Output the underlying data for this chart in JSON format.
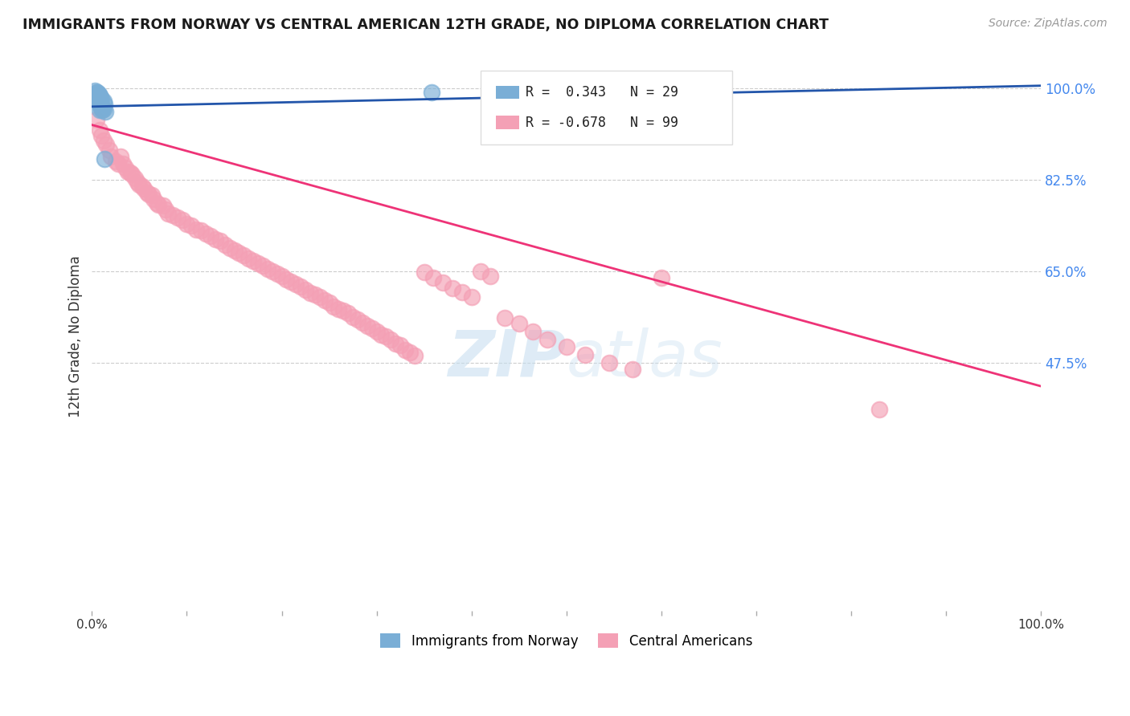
{
  "title": "IMMIGRANTS FROM NORWAY VS CENTRAL AMERICAN 12TH GRADE, NO DIPLOMA CORRELATION CHART",
  "source": "Source: ZipAtlas.com",
  "ylabel": "12th Grade, No Diploma",
  "norway_label": "Immigrants from Norway",
  "central_label": "Central Americans",
  "norway_R": 0.343,
  "norway_N": 29,
  "central_R": -0.678,
  "central_N": 99,
  "norway_color": "#7aaed6",
  "central_color": "#f4a0b5",
  "norway_line_color": "#2255aa",
  "central_line_color": "#ee3377",
  "watermark_color": "#c8dff0",
  "right_ytick_color": "#4488ee",
  "norway_x": [
    0.003,
    0.005,
    0.006,
    0.007,
    0.008,
    0.009,
    0.01,
    0.012,
    0.013,
    0.005,
    0.007,
    0.009,
    0.011,
    0.008,
    0.01,
    0.006,
    0.012,
    0.014,
    0.007,
    0.009,
    0.008,
    0.01,
    0.006,
    0.011,
    0.009,
    0.008,
    0.007,
    0.358,
    0.013
  ],
  "norway_y": [
    0.995,
    0.992,
    0.99,
    0.988,
    0.985,
    0.983,
    0.98,
    0.975,
    0.97,
    0.978,
    0.972,
    0.968,
    0.962,
    0.958,
    0.965,
    0.992,
    0.96,
    0.955,
    0.985,
    0.97,
    0.975,
    0.962,
    0.988,
    0.958,
    0.968,
    0.98,
    0.99,
    0.992,
    0.865
  ],
  "central_x": [
    0.005,
    0.008,
    0.01,
    0.012,
    0.015,
    0.018,
    0.02,
    0.025,
    0.028,
    0.03,
    0.033,
    0.035,
    0.038,
    0.04,
    0.042,
    0.045,
    0.048,
    0.05,
    0.053,
    0.055,
    0.058,
    0.06,
    0.063,
    0.065,
    0.068,
    0.07,
    0.075,
    0.078,
    0.08,
    0.085,
    0.09,
    0.095,
    0.1,
    0.105,
    0.11,
    0.115,
    0.12,
    0.125,
    0.13,
    0.135,
    0.14,
    0.145,
    0.15,
    0.155,
    0.16,
    0.165,
    0.17,
    0.175,
    0.18,
    0.185,
    0.19,
    0.195,
    0.2,
    0.205,
    0.21,
    0.215,
    0.22,
    0.225,
    0.23,
    0.235,
    0.24,
    0.245,
    0.25,
    0.255,
    0.26,
    0.265,
    0.27,
    0.275,
    0.28,
    0.285,
    0.29,
    0.295,
    0.3,
    0.305,
    0.31,
    0.315,
    0.32,
    0.325,
    0.33,
    0.335,
    0.34,
    0.35,
    0.36,
    0.37,
    0.38,
    0.39,
    0.4,
    0.41,
    0.42,
    0.435,
    0.45,
    0.465,
    0.48,
    0.5,
    0.52,
    0.545,
    0.57,
    0.6,
    0.83
  ],
  "central_y": [
    0.94,
    0.92,
    0.91,
    0.9,
    0.892,
    0.882,
    0.87,
    0.86,
    0.855,
    0.87,
    0.855,
    0.848,
    0.84,
    0.838,
    0.835,
    0.828,
    0.82,
    0.815,
    0.812,
    0.808,
    0.8,
    0.798,
    0.795,
    0.788,
    0.78,
    0.778,
    0.775,
    0.768,
    0.76,
    0.758,
    0.752,
    0.748,
    0.74,
    0.738,
    0.73,
    0.728,
    0.722,
    0.718,
    0.712,
    0.708,
    0.7,
    0.695,
    0.69,
    0.685,
    0.68,
    0.675,
    0.67,
    0.665,
    0.66,
    0.655,
    0.65,
    0.645,
    0.64,
    0.635,
    0.63,
    0.625,
    0.62,
    0.615,
    0.608,
    0.605,
    0.6,
    0.595,
    0.59,
    0.582,
    0.578,
    0.575,
    0.57,
    0.562,
    0.558,
    0.552,
    0.545,
    0.54,
    0.535,
    0.528,
    0.525,
    0.52,
    0.512,
    0.508,
    0.5,
    0.495,
    0.488,
    0.648,
    0.638,
    0.628,
    0.618,
    0.61,
    0.6,
    0.65,
    0.64,
    0.56,
    0.55,
    0.535,
    0.52,
    0.505,
    0.49,
    0.475,
    0.462,
    0.638,
    0.385
  ],
  "xlim": [
    0.0,
    1.0
  ],
  "ylim": [
    0.0,
    1.05
  ],
  "right_yticks": [
    1.0,
    0.825,
    0.65,
    0.475
  ],
  "right_yticklabels": [
    "100.0%",
    "82.5%",
    "65.0%",
    "47.5%"
  ],
  "bottom_xticks": [
    0.0,
    0.1,
    0.2,
    0.3,
    0.4,
    0.5,
    0.6,
    0.7,
    0.8,
    0.9,
    1.0
  ],
  "bottom_xticklabels": [
    "0.0%",
    "",
    "",
    "",
    "",
    "",
    "",
    "",
    "",
    "",
    "100.0%"
  ],
  "norway_trendline_x": [
    0.0,
    1.0
  ],
  "norway_trendline_y": [
    0.965,
    1.005
  ],
  "central_trendline_x": [
    0.0,
    1.0
  ],
  "central_trendline_y": [
    0.93,
    0.43
  ]
}
